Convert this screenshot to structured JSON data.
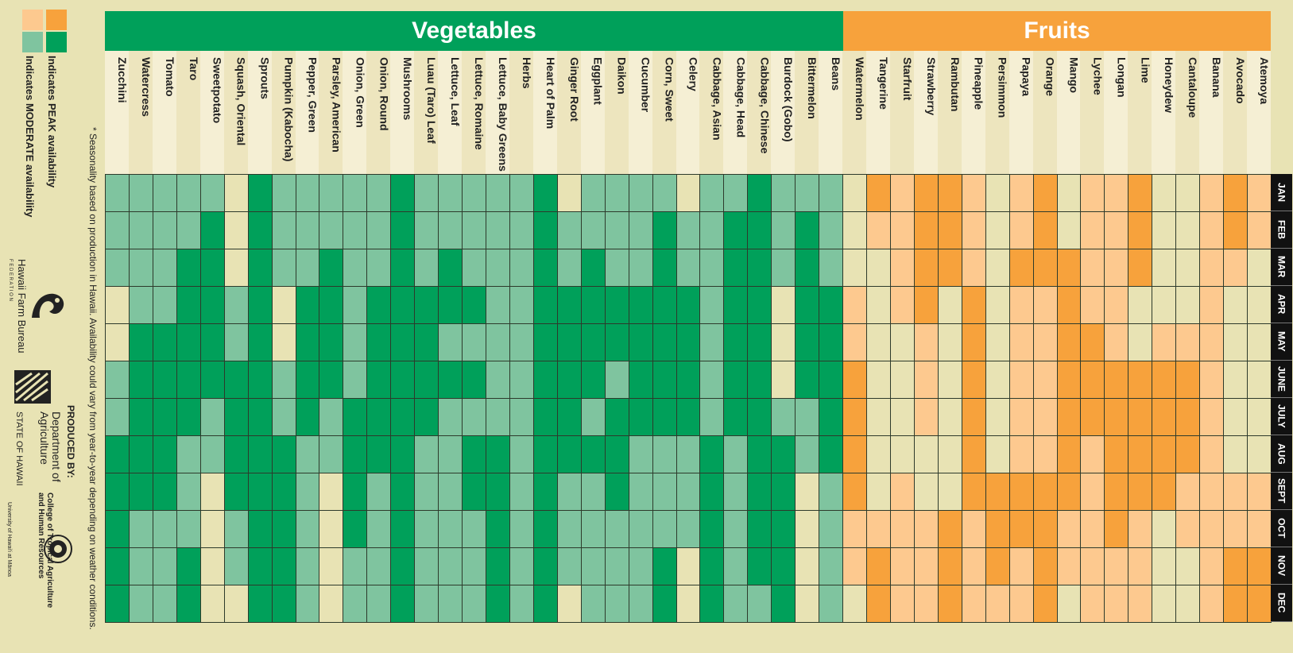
{
  "headers": {
    "vegetables": "Vegetables",
    "fruits": "Fruits"
  },
  "legend": {
    "peak": "Indicates PEAK availability",
    "moderate": "Indicates MODERATE availability",
    "colors": {
      "veg_peak": "#00a05a",
      "veg_moderate": "#7fc49f",
      "fruit_peak": "#f7a23c",
      "fruit_moderate": "#fdc98f",
      "none": "#e8e3b4"
    }
  },
  "footnote": "* Seasonality based on production in Hawaii. Availability could vary from year-to-year depending on weather conditions.",
  "credits": {
    "produced_by": "PRODUCED BY:",
    "farm_bureau": "Hawaii Farm Bureau",
    "farm_bureau_sub": "F E D E R A T I O N",
    "dept": "Department of Agriculture",
    "state": "STATE OF HAWAII",
    "ctahr": "College of Tropical Agriculture and Human Resources",
    "uh": "University of Hawai'i at Mānoa"
  },
  "chart_data": {
    "type": "heatmap",
    "value_legend": {
      "2": "peak",
      "1": "moderate",
      "0": "not available"
    },
    "months": [
      "JAN",
      "FEB",
      "MAR",
      "APR",
      "MAY",
      "JUNE",
      "JULY",
      "AUG",
      "SEPT",
      "OCT",
      "NOV",
      "DEC"
    ],
    "columns": [
      {
        "name": "Zucchini",
        "group": "veg",
        "values": [
          1,
          1,
          1,
          0,
          0,
          1,
          1,
          2,
          2,
          2,
          2,
          2
        ]
      },
      {
        "name": "Watercress",
        "group": "veg",
        "values": [
          1,
          1,
          1,
          1,
          2,
          2,
          2,
          2,
          2,
          1,
          1,
          1
        ]
      },
      {
        "name": "Tomato",
        "group": "veg",
        "values": [
          1,
          1,
          1,
          1,
          2,
          2,
          2,
          2,
          2,
          1,
          1,
          1
        ]
      },
      {
        "name": "Taro",
        "group": "veg",
        "values": [
          1,
          1,
          2,
          2,
          2,
          2,
          2,
          1,
          1,
          1,
          2,
          2
        ]
      },
      {
        "name": "Sweetpotato",
        "group": "veg",
        "values": [
          1,
          2,
          2,
          2,
          2,
          2,
          1,
          1,
          0,
          0,
          0,
          0
        ]
      },
      {
        "name": "Squash, Oriental",
        "group": "veg",
        "values": [
          0,
          0,
          0,
          1,
          1,
          2,
          2,
          2,
          2,
          1,
          1,
          0
        ]
      },
      {
        "name": "Sprouts",
        "group": "veg",
        "values": [
          2,
          2,
          2,
          2,
          2,
          2,
          2,
          2,
          2,
          2,
          2,
          2
        ]
      },
      {
        "name": "Pumpkin (Kabocha)",
        "group": "veg",
        "values": [
          1,
          1,
          1,
          0,
          0,
          1,
          1,
          2,
          2,
          2,
          2,
          2
        ]
      },
      {
        "name": "Pepper, Green",
        "group": "veg",
        "values": [
          1,
          1,
          1,
          2,
          2,
          2,
          2,
          1,
          1,
          1,
          1,
          1
        ]
      },
      {
        "name": "Parsley, American",
        "group": "veg",
        "values": [
          1,
          1,
          2,
          2,
          2,
          2,
          1,
          1,
          0,
          0,
          0,
          0
        ]
      },
      {
        "name": "Onion, Green",
        "group": "veg",
        "values": [
          1,
          1,
          1,
          1,
          1,
          1,
          2,
          2,
          2,
          2,
          1,
          1
        ]
      },
      {
        "name": "Onion, Round",
        "group": "veg",
        "values": [
          1,
          1,
          1,
          2,
          2,
          2,
          2,
          2,
          1,
          1,
          1,
          1
        ]
      },
      {
        "name": "Mushrooms",
        "group": "veg",
        "values": [
          2,
          2,
          2,
          2,
          2,
          2,
          2,
          2,
          2,
          2,
          2,
          2
        ]
      },
      {
        "name": "Luau (Taro) Leaf",
        "group": "veg",
        "values": [
          1,
          1,
          1,
          2,
          2,
          2,
          2,
          1,
          1,
          1,
          1,
          1
        ]
      },
      {
        "name": "Lettuce, Leaf",
        "group": "veg",
        "values": [
          1,
          1,
          2,
          2,
          1,
          2,
          1,
          1,
          1,
          1,
          1,
          1
        ]
      },
      {
        "name": "Lettuce, Romaine",
        "group": "veg",
        "values": [
          1,
          1,
          1,
          2,
          1,
          2,
          1,
          2,
          2,
          1,
          1,
          1
        ]
      },
      {
        "name": "Lettuce, Baby Greens",
        "group": "veg",
        "values": [
          1,
          1,
          1,
          1,
          1,
          1,
          1,
          2,
          2,
          2,
          2,
          2
        ]
      },
      {
        "name": "Herbs",
        "group": "veg",
        "values": [
          1,
          1,
          1,
          1,
          1,
          1,
          1,
          1,
          1,
          1,
          1,
          1
        ]
      },
      {
        "name": "Heart of Palm",
        "group": "veg",
        "values": [
          2,
          2,
          2,
          2,
          2,
          2,
          2,
          2,
          2,
          2,
          2,
          2
        ]
      },
      {
        "name": "Ginger Root",
        "group": "veg",
        "values": [
          0,
          1,
          1,
          2,
          2,
          2,
          2,
          2,
          1,
          1,
          1,
          0
        ]
      },
      {
        "name": "Eggplant",
        "group": "veg",
        "values": [
          1,
          1,
          2,
          2,
          2,
          2,
          1,
          2,
          1,
          1,
          1,
          1
        ]
      },
      {
        "name": "Daikon",
        "group": "veg",
        "values": [
          1,
          1,
          1,
          2,
          2,
          1,
          2,
          2,
          2,
          1,
          1,
          1
        ]
      },
      {
        "name": "Cucumber",
        "group": "veg",
        "values": [
          1,
          1,
          1,
          2,
          2,
          2,
          2,
          1,
          1,
          1,
          1,
          1
        ]
      },
      {
        "name": "Corn, Sweet",
        "group": "veg",
        "values": [
          1,
          2,
          2,
          2,
          2,
          2,
          2,
          1,
          1,
          1,
          2,
          2
        ]
      },
      {
        "name": "Celery",
        "group": "veg",
        "values": [
          0,
          1,
          1,
          2,
          2,
          2,
          2,
          1,
          1,
          1,
          0,
          0
        ]
      },
      {
        "name": "Cabbage, Asian",
        "group": "veg",
        "values": [
          1,
          1,
          1,
          1,
          1,
          1,
          1,
          2,
          2,
          2,
          2,
          2
        ]
      },
      {
        "name": "Cabbage, Head",
        "group": "veg",
        "values": [
          1,
          2,
          2,
          2,
          2,
          2,
          2,
          1,
          1,
          1,
          1,
          1
        ]
      },
      {
        "name": "Cabbage, Chinese",
        "group": "veg",
        "values": [
          2,
          2,
          2,
          2,
          2,
          2,
          2,
          2,
          2,
          2,
          2,
          1
        ]
      },
      {
        "name": "Burdock (Gobo)",
        "group": "veg",
        "values": [
          1,
          1,
          1,
          0,
          0,
          0,
          1,
          2,
          2,
          2,
          2,
          2
        ]
      },
      {
        "name": "Bittermelon",
        "group": "veg",
        "values": [
          1,
          2,
          2,
          2,
          2,
          2,
          1,
          1,
          0,
          0,
          0,
          0
        ]
      },
      {
        "name": "Beans",
        "group": "veg",
        "values": [
          1,
          1,
          1,
          2,
          2,
          2,
          2,
          2,
          1,
          1,
          1,
          1
        ]
      },
      {
        "name": "Watermelon",
        "group": "fruit",
        "values": [
          0,
          0,
          0,
          1,
          1,
          2,
          2,
          2,
          2,
          1,
          1,
          0
        ]
      },
      {
        "name": "Tangerine",
        "group": "fruit",
        "values": [
          2,
          1,
          0,
          0,
          0,
          0,
          0,
          0,
          0,
          1,
          2,
          2
        ]
      },
      {
        "name": "Starfruit",
        "group": "fruit",
        "values": [
          1,
          1,
          1,
          1,
          0,
          0,
          0,
          0,
          1,
          1,
          1,
          1
        ]
      },
      {
        "name": "Strawberry",
        "group": "fruit",
        "values": [
          2,
          2,
          2,
          2,
          1,
          1,
          1,
          0,
          0,
          1,
          1,
          1
        ]
      },
      {
        "name": "Rambutan",
        "group": "fruit",
        "values": [
          2,
          2,
          2,
          0,
          0,
          0,
          0,
          0,
          0,
          2,
          2,
          2
        ]
      },
      {
        "name": "Pineapple",
        "group": "fruit",
        "values": [
          1,
          1,
          1,
          2,
          2,
          2,
          2,
          2,
          2,
          1,
          1,
          1
        ]
      },
      {
        "name": "Persimmon",
        "group": "fruit",
        "values": [
          0,
          0,
          0,
          0,
          0,
          0,
          0,
          0,
          2,
          2,
          2,
          1
        ]
      },
      {
        "name": "Papaya",
        "group": "fruit",
        "values": [
          1,
          1,
          2,
          1,
          1,
          1,
          1,
          1,
          2,
          2,
          1,
          1
        ]
      },
      {
        "name": "Orange",
        "group": "fruit",
        "values": [
          2,
          2,
          2,
          1,
          1,
          1,
          1,
          1,
          2,
          2,
          2,
          2
        ]
      },
      {
        "name": "Mango",
        "group": "fruit",
        "values": [
          0,
          0,
          2,
          2,
          2,
          2,
          2,
          2,
          2,
          1,
          1,
          0
        ]
      },
      {
        "name": "Lychee",
        "group": "fruit",
        "values": [
          1,
          1,
          1,
          1,
          2,
          2,
          2,
          1,
          1,
          1,
          1,
          1
        ]
      },
      {
        "name": "Longan",
        "group": "fruit",
        "values": [
          1,
          1,
          1,
          1,
          1,
          2,
          2,
          2,
          2,
          2,
          1,
          1
        ]
      },
      {
        "name": "Lime",
        "group": "fruit",
        "values": [
          2,
          2,
          2,
          0,
          0,
          2,
          2,
          2,
          2,
          1,
          1,
          1
        ]
      },
      {
        "name": "Honeydew",
        "group": "fruit",
        "values": [
          0,
          0,
          0,
          0,
          1,
          2,
          2,
          2,
          2,
          0,
          0,
          0
        ]
      },
      {
        "name": "Cantaloupe",
        "group": "fruit",
        "values": [
          0,
          0,
          0,
          0,
          1,
          2,
          2,
          2,
          1,
          1,
          0,
          0
        ]
      },
      {
        "name": "Banana",
        "group": "fruit",
        "values": [
          1,
          1,
          1,
          1,
          1,
          1,
          1,
          1,
          1,
          1,
          1,
          1
        ]
      },
      {
        "name": "Avocado",
        "group": "fruit",
        "values": [
          2,
          2,
          1,
          0,
          0,
          0,
          0,
          0,
          1,
          1,
          2,
          2
        ]
      },
      {
        "name": "Atemoya",
        "group": "fruit",
        "values": [
          1,
          1,
          0,
          0,
          0,
          0,
          0,
          0,
          1,
          1,
          2,
          2
        ]
      }
    ]
  }
}
